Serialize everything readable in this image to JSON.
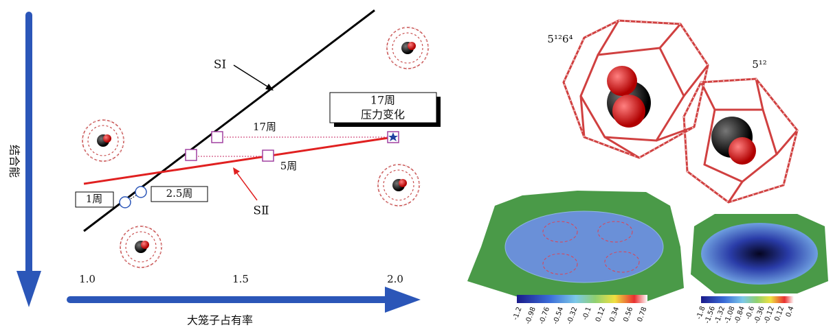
{
  "axes": {
    "y_label": "结合能",
    "x_label": "大笼子占有率",
    "x_ticks": [
      "1.0",
      "1.5",
      "2.0"
    ]
  },
  "lines": {
    "s1": "SⅠ",
    "s2": "SⅡ"
  },
  "annotations": {
    "week17": "17周",
    "week5": "5周",
    "week1": "1周",
    "week2_5": "2.5周",
    "pressure_box": [
      "17周",
      "压力变化"
    ]
  },
  "structure": {
    "large_cage": "5¹²6⁴",
    "small_cage": "5¹²"
  },
  "colorbars": [
    {
      "labels": [
        "-1.2",
        "-0.98",
        "-0.76",
        "-0.54",
        "-0.32",
        "-0.1",
        "0.12",
        "0.34",
        "0.56",
        "0.78"
      ]
    },
    {
      "labels": [
        "-1.8",
        "-1.56",
        "-1.32",
        "-1.08",
        "-0.84",
        "-0.6",
        "-0.36",
        "-0.12",
        "0.12",
        "0.4"
      ]
    }
  ]
}
